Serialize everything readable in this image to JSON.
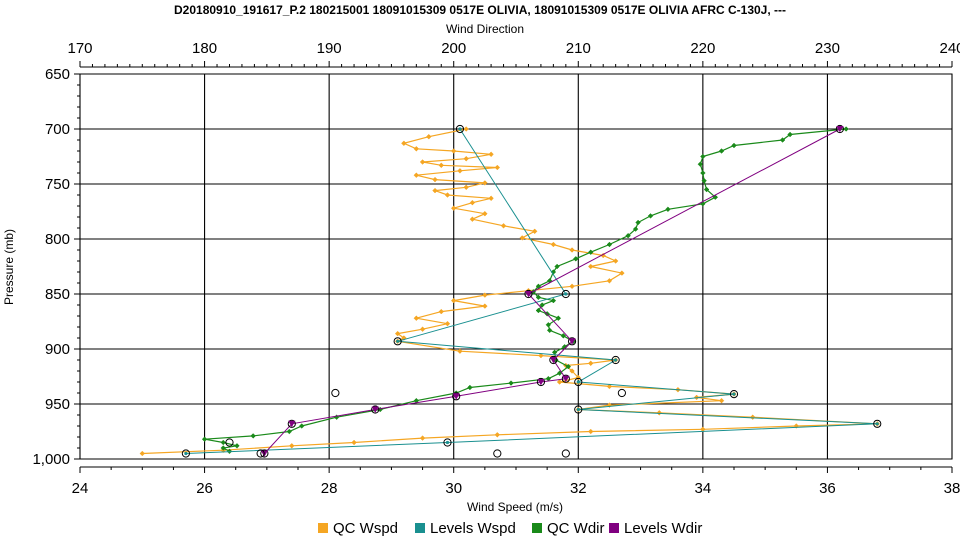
{
  "chart_data": {
    "type": "line",
    "title": "D20180910_191617_P.2 180215001 18091015309 0517E OLIVIA, 18091015309 0517E OLIVIA AFRC C-130J, ---",
    "xlabel": "Wind Speed (m/s)",
    "x2label": "Wind Direction",
    "ylabel": "Pressure (mb)",
    "xlim": [
      24,
      38
    ],
    "x2lim": [
      170,
      240
    ],
    "ylim": [
      650,
      1000
    ],
    "y_inverted": true,
    "grid": true,
    "legend_position": "bottom",
    "x_ticks": [
      "24",
      "26",
      "28",
      "30",
      "32",
      "34",
      "36",
      "38"
    ],
    "x2_ticks": [
      "170",
      "180",
      "190",
      "200",
      "210",
      "220",
      "230",
      "240"
    ],
    "y_ticks": [
      "650",
      "700",
      "750",
      "800",
      "850",
      "900",
      "950",
      "1,000"
    ],
    "x_tick_values": [
      24,
      26,
      28,
      30,
      32,
      34,
      36,
      38
    ],
    "x2_tick_values": [
      170,
      180,
      190,
      200,
      210,
      220,
      230,
      240
    ],
    "y_tick_values": [
      650,
      700,
      750,
      800,
      850,
      900,
      950,
      1000
    ],
    "series": [
      {
        "name": "QC Wspd",
        "axis": "bottom",
        "color": "#f5a623",
        "marker": "diamond",
        "points": [
          [
            30.2,
            700
          ],
          [
            29.6,
            707
          ],
          [
            29.2,
            713
          ],
          [
            29.4,
            718
          ],
          [
            30.0,
            720
          ],
          [
            30.6,
            723
          ],
          [
            30.2,
            727
          ],
          [
            29.5,
            730
          ],
          [
            29.8,
            733
          ],
          [
            30.7,
            735
          ],
          [
            30.1,
            738
          ],
          [
            29.4,
            742
          ],
          [
            29.7,
            746
          ],
          [
            30.5,
            749
          ],
          [
            30.2,
            753
          ],
          [
            29.7,
            756
          ],
          [
            29.9,
            760
          ],
          [
            30.6,
            763
          ],
          [
            30.3,
            767
          ],
          [
            30.0,
            772
          ],
          [
            30.5,
            777
          ],
          [
            30.3,
            782
          ],
          [
            30.8,
            788
          ],
          [
            31.3,
            793
          ],
          [
            31.1,
            799
          ],
          [
            31.6,
            805
          ],
          [
            31.9,
            810
          ],
          [
            32.4,
            815
          ],
          [
            32.6,
            820
          ],
          [
            32.2,
            825
          ],
          [
            32.7,
            831
          ],
          [
            32.5,
            838
          ],
          [
            31.9,
            843
          ],
          [
            31.2,
            847
          ],
          [
            30.5,
            851
          ],
          [
            30.0,
            856
          ],
          [
            30.5,
            861
          ],
          [
            29.8,
            866
          ],
          [
            29.4,
            872
          ],
          [
            29.9,
            877
          ],
          [
            29.5,
            882
          ],
          [
            29.1,
            886
          ],
          [
            29.2,
            890
          ],
          [
            29.1,
            893
          ],
          [
            30.1,
            902
          ],
          [
            31.4,
            906
          ],
          [
            32.6,
            910
          ],
          [
            32.2,
            913
          ],
          [
            31.8,
            915
          ],
          [
            31.9,
            920
          ],
          [
            32.0,
            926
          ],
          [
            31.7,
            930
          ],
          [
            32.5,
            934
          ],
          [
            33.6,
            937
          ],
          [
            34.5,
            941
          ],
          [
            33.9,
            944
          ],
          [
            34.3,
            947
          ],
          [
            32.5,
            951
          ],
          [
            32.0,
            955
          ],
          [
            33.3,
            958
          ],
          [
            34.8,
            962
          ],
          [
            36.8,
            968
          ],
          [
            35.5,
            970
          ],
          [
            34.0,
            973
          ],
          [
            32.2,
            975
          ],
          [
            30.7,
            978
          ],
          [
            29.5,
            981
          ],
          [
            28.4,
            985
          ],
          [
            27.4,
            988
          ],
          [
            26.3,
            992
          ],
          [
            25.0,
            995
          ]
        ]
      },
      {
        "name": "Levels Wspd",
        "axis": "bottom",
        "color": "#1a9090",
        "marker": "circle",
        "points": [
          [
            30.1,
            700
          ],
          [
            31.8,
            850
          ],
          [
            29.1,
            893
          ],
          [
            32.6,
            910
          ],
          [
            32.0,
            930
          ],
          [
            34.5,
            941
          ],
          [
            32.0,
            955
          ],
          [
            36.8,
            968
          ],
          [
            29.9,
            985
          ],
          [
            25.7,
            995
          ]
        ]
      },
      {
        "name": "QC Wdir",
        "axis": "top",
        "color": "#1a8a1a",
        "marker": "diamond",
        "points": [
          [
            231.5,
            700
          ],
          [
            227.0,
            705
          ],
          [
            226.4,
            710
          ],
          [
            222.5,
            715
          ],
          [
            221.5,
            720
          ],
          [
            220.0,
            725
          ],
          [
            219.8,
            732
          ],
          [
            220.0,
            740
          ],
          [
            220.1,
            747
          ],
          [
            220.3,
            755
          ],
          [
            221.0,
            762
          ],
          [
            220.0,
            768
          ],
          [
            217.2,
            773
          ],
          [
            215.8,
            779
          ],
          [
            214.8,
            785
          ],
          [
            214.6,
            791
          ],
          [
            214.0,
            797
          ],
          [
            212.5,
            805
          ],
          [
            211.0,
            812
          ],
          [
            209.8,
            818
          ],
          [
            208.3,
            825
          ],
          [
            208.0,
            830
          ],
          [
            207.7,
            838
          ],
          [
            206.8,
            843
          ],
          [
            206.4,
            848
          ],
          [
            206.8,
            853
          ],
          [
            208.0,
            856
          ],
          [
            207.1,
            860
          ],
          [
            206.8,
            865
          ],
          [
            207.5,
            868
          ],
          [
            208.4,
            872
          ],
          [
            207.6,
            878
          ],
          [
            207.7,
            883
          ],
          [
            208.8,
            888
          ],
          [
            209.6,
            893
          ],
          [
            208.9,
            898
          ],
          [
            208.1,
            903
          ],
          [
            208.2,
            910
          ],
          [
            209.2,
            916
          ],
          [
            208.5,
            922
          ],
          [
            207.6,
            927
          ],
          [
            204.6,
            931
          ],
          [
            201.3,
            935
          ],
          [
            200.2,
            940
          ],
          [
            197.0,
            947
          ],
          [
            194.1,
            955
          ],
          [
            190.6,
            962
          ],
          [
            187.8,
            970
          ],
          [
            186.8,
            975
          ],
          [
            183.9,
            979
          ],
          [
            180.0,
            982
          ],
          [
            181.5,
            985
          ],
          [
            182.6,
            988
          ],
          [
            181.5,
            990
          ],
          [
            182.0,
            993
          ]
        ]
      },
      {
        "name": "Levels Wdir",
        "axis": "top",
        "color": "#800080",
        "marker": "triangle",
        "points": [
          [
            231.0,
            700
          ],
          [
            206.0,
            850
          ],
          [
            209.5,
            893
          ],
          [
            208.0,
            910
          ],
          [
            209.0,
            927
          ],
          [
            207.0,
            930
          ],
          [
            200.2,
            943
          ],
          [
            193.7,
            955
          ],
          [
            187.0,
            968
          ],
          [
            184.8,
            995
          ]
        ]
      }
    ],
    "extra_points_bottom": [
      [
        28.1,
        940
      ],
      [
        32.7,
        940
      ],
      [
        26.4,
        985
      ],
      [
        30.7,
        995
      ],
      [
        31.8,
        995
      ],
      [
        26.9,
        995
      ]
    ]
  }
}
